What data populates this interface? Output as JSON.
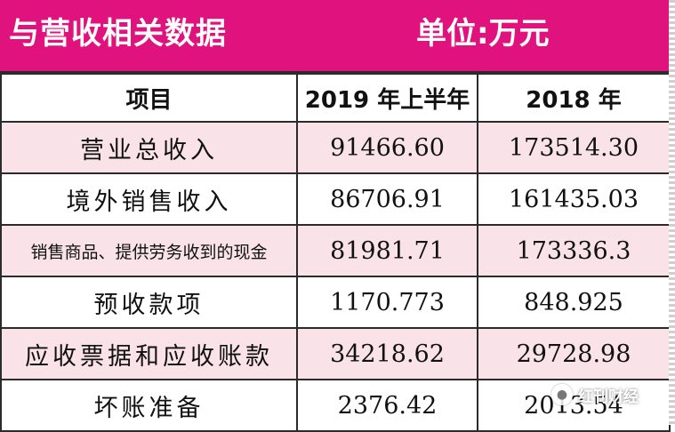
{
  "header": {
    "title": "与营收相关数据",
    "unit": "单位:万元"
  },
  "table": {
    "columns": [
      "项目",
      "2019 年上半年",
      "2018 年"
    ],
    "rows": [
      {
        "item": "营业总收入",
        "h1_2019": "91466.60",
        "y2018": "173514.30"
      },
      {
        "item": "境外销售收入",
        "h1_2019": "86706.91",
        "y2018": "161435.03"
      },
      {
        "item": "销售商品、提供劳务收到的现金",
        "h1_2019": "81981.71",
        "y2018": "173336.3"
      },
      {
        "item": "预收款项",
        "h1_2019": "1170.773",
        "y2018": "848.925"
      },
      {
        "item": "应收票据和应收账款",
        "h1_2019": "34218.62",
        "y2018": "29728.98"
      },
      {
        "item": "坏账准备",
        "h1_2019": "2376.42",
        "y2018": "2013.54"
      }
    ]
  },
  "watermark": {
    "icon": "wechat-icon",
    "text": "红刊财经"
  },
  "colors": {
    "header_bg": "#e0137e",
    "row_pink": "#f9e3e8"
  }
}
